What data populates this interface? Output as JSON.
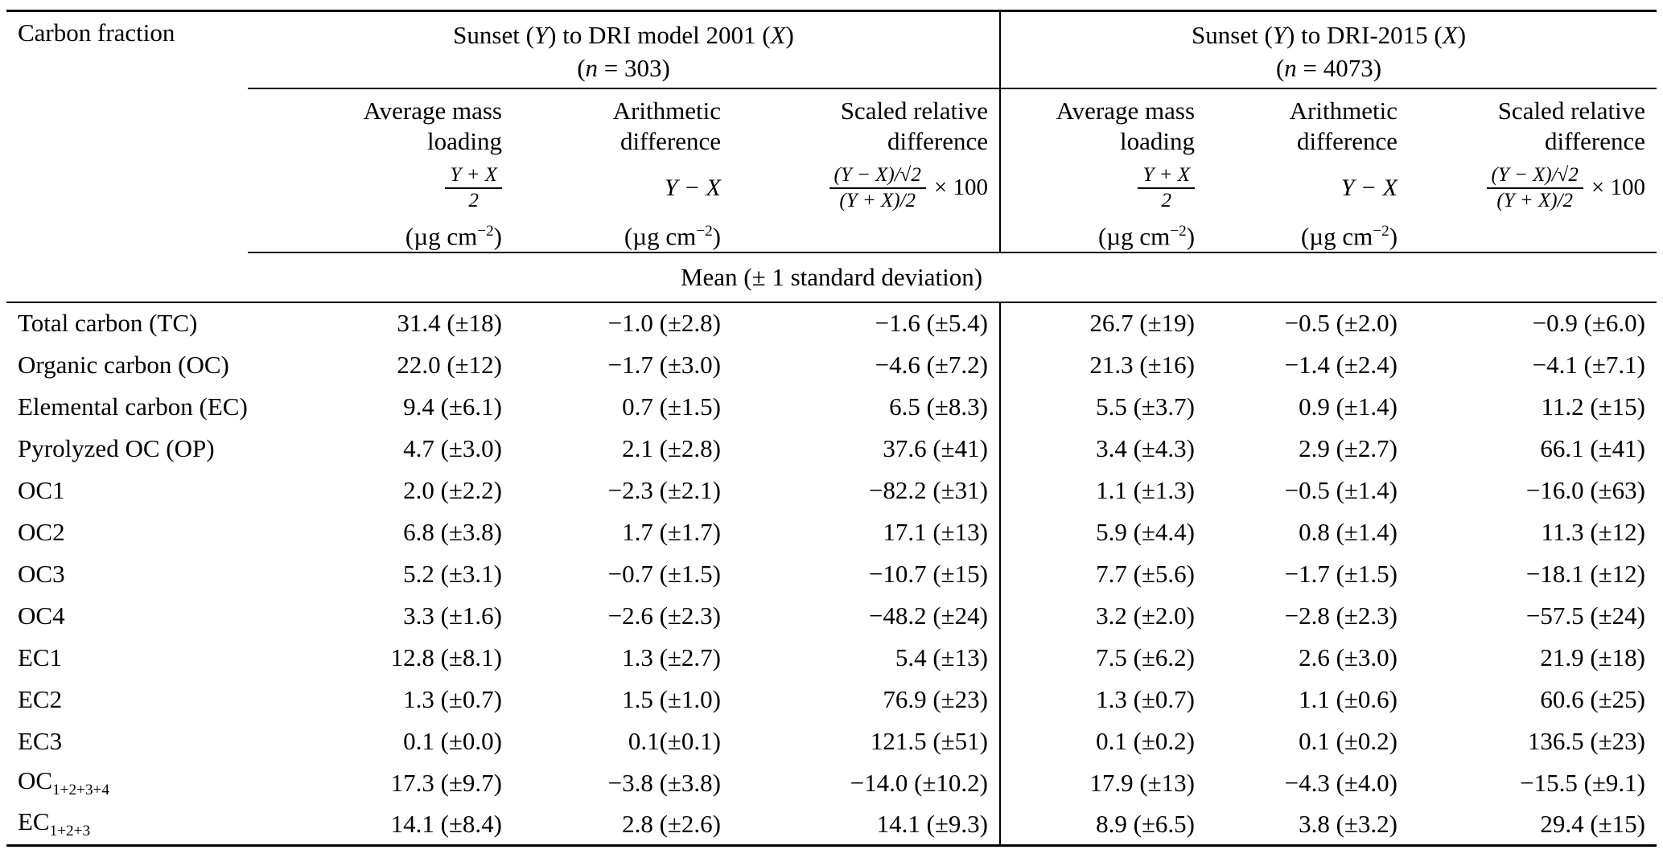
{
  "table": {
    "corner_label": "Carbon fraction",
    "groups": [
      {
        "title_parts": [
          "Sunset (",
          "Y",
          ") to DRI model 2001 (",
          "X",
          ")"
        ],
        "n_parts": [
          "(",
          "n",
          " = 303)"
        ]
      },
      {
        "title_parts": [
          "Sunset (",
          "Y",
          ") to DRI-2015 (",
          "X",
          ")"
        ],
        "n_parts": [
          "(",
          "n",
          " = 4073)"
        ]
      }
    ],
    "subcolumns": [
      {
        "name_line1": "Average mass",
        "name_line2": "loading",
        "formula_num": "Y + X",
        "formula_den": "2",
        "unit_pre": "(µg cm",
        "unit_sup": "−2",
        "unit_post": ")"
      },
      {
        "name_line1": "Arithmetic",
        "name_line2": "difference",
        "formula_inline": "Y − X",
        "unit_pre": "(µg cm",
        "unit_sup": "−2",
        "unit_post": ")"
      },
      {
        "name_line1": "Scaled relative",
        "name_line2": "difference",
        "formula_num": "(Y − X)/√2",
        "formula_den": "(Y + X)/2",
        "formula_mult": "× 100"
      }
    ],
    "mean_label": "Mean (± 1 standard deviation)",
    "rows": [
      {
        "label": "Total carbon (TC)",
        "cells": [
          "31.4 (±18)",
          "−1.0 (±2.8)",
          "−1.6 (±5.4)",
          "26.7 (±19)",
          "−0.5 (±2.0)",
          "−0.9 (±6.0)"
        ]
      },
      {
        "label": "Organic carbon (OC)",
        "cells": [
          "22.0 (±12)",
          "−1.7 (±3.0)",
          "−4.6 (±7.2)",
          "21.3 (±16)",
          "−1.4 (±2.4)",
          "−4.1 (±7.1)"
        ]
      },
      {
        "label": "Elemental carbon (EC)",
        "cells": [
          "9.4 (±6.1)",
          "0.7 (±1.5)",
          "6.5 (±8.3)",
          "5.5 (±3.7)",
          "0.9 (±1.4)",
          "11.2 (±15)"
        ]
      },
      {
        "label": "Pyrolyzed OC (OP)",
        "cells": [
          "4.7 (±3.0)",
          "2.1 (±2.8)",
          "37.6 (±41)",
          "3.4 (±4.3)",
          "2.9 (±2.7)",
          "66.1 (±41)"
        ]
      },
      {
        "label": "OC1",
        "cells": [
          "2.0 (±2.2)",
          "−2.3 (±2.1)",
          "−82.2 (±31)",
          "1.1 (±1.3)",
          "−0.5 (±1.4)",
          "−16.0 (±63)"
        ]
      },
      {
        "label": "OC2",
        "cells": [
          "6.8 (±3.8)",
          "1.7 (±1.7)",
          "17.1 (±13)",
          "5.9 (±4.4)",
          "0.8 (±1.4)",
          "11.3 (±12)"
        ]
      },
      {
        "label": "OC3",
        "cells": [
          "5.2 (±3.1)",
          "−0.7 (±1.5)",
          "−10.7 (±15)",
          "7.7 (±5.6)",
          "−1.7 (±1.5)",
          "−18.1 (±12)"
        ]
      },
      {
        "label": "OC4",
        "cells": [
          "3.3 (±1.6)",
          "−2.6 (±2.3)",
          "−48.2 (±24)",
          "3.2 (±2.0)",
          "−2.8 (±2.3)",
          "−57.5 (±24)"
        ]
      },
      {
        "label": "EC1",
        "cells": [
          "12.8 (±8.1)",
          "1.3 (±2.7)",
          "5.4 (±13)",
          "7.5 (±6.2)",
          "2.6 (±3.0)",
          "21.9 (±18)"
        ]
      },
      {
        "label": "EC2",
        "cells": [
          "1.3 (±0.7)",
          "1.5 (±1.0)",
          "76.9 (±23)",
          "1.3 (±0.7)",
          "1.1 (±0.6)",
          "60.6 (±25)"
        ]
      },
      {
        "label": "EC3",
        "cells": [
          "0.1 (±0.0)",
          "0.1(±0.1)",
          "121.5 (±51)",
          "0.1 (±0.2)",
          "0.1 (±0.2)",
          "136.5 (±23)"
        ]
      },
      {
        "label": "OC",
        "label_sub": "1+2+3+4",
        "cells": [
          "17.3 (±9.7)",
          "−3.8 (±3.8)",
          "−14.0 (±10.2)",
          "17.9 (±13)",
          "−4.3 (±4.0)",
          "−15.5 (±9.1)"
        ]
      },
      {
        "label": "EC",
        "label_sub": "1+2+3",
        "cells": [
          "14.1 (±8.4)",
          "2.8 (±2.6)",
          "14.1 (±9.3)",
          "8.9 (±6.5)",
          "3.8 (±3.2)",
          "29.4 (±15)"
        ]
      }
    ]
  }
}
